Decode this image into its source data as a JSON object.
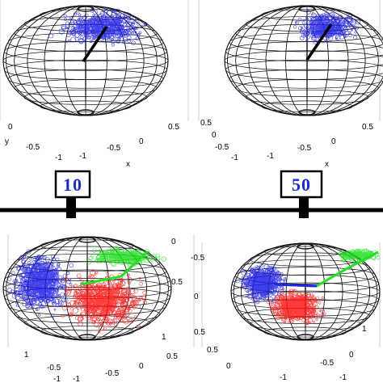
{
  "colors": {
    "wire": "#111111",
    "blue": "#2020e8",
    "red": "#ff1a1a",
    "green": "#22e022",
    "flag_text": "#1a2cc9"
  },
  "markers": [
    {
      "text": "10"
    },
    {
      "text": "50"
    }
  ],
  "panels": [
    {
      "name": "top-left",
      "ticks": {
        "y_a": "0",
        "y_b": "-0.5",
        "y_c": "-1",
        "x_a": "0.5",
        "x_b": "0",
        "x_c": "-0.5",
        "x_d": "-1",
        "y_axis": "y",
        "x_axis": "x"
      }
    },
    {
      "name": "top-right",
      "ticks": {
        "y_a": "0.5",
        "y_b": "0",
        "y_c": "-0.5",
        "y_d": "-1",
        "x_a": "0.5",
        "x_b": "0",
        "x_c": "-0.5",
        "x_d": "-1",
        "x_axis": "x"
      }
    },
    {
      "name": "bottom-left",
      "ticks": {
        "a": "0",
        "b": "0.5",
        "c": "1",
        "d": "0.5",
        "e": "0",
        "f": "-0.5",
        "g": "-1",
        "h": "-0.5",
        "i": "-1",
        "j": "1"
      }
    },
    {
      "name": "bottom-right",
      "ticks": {
        "a": "-0.5",
        "b": "0",
        "c": "0.5",
        "d": "1",
        "e": "0",
        "f": "-0.5",
        "g": "0.5",
        "h": "-1",
        "i": "1",
        "j": "-1"
      }
    }
  ]
}
